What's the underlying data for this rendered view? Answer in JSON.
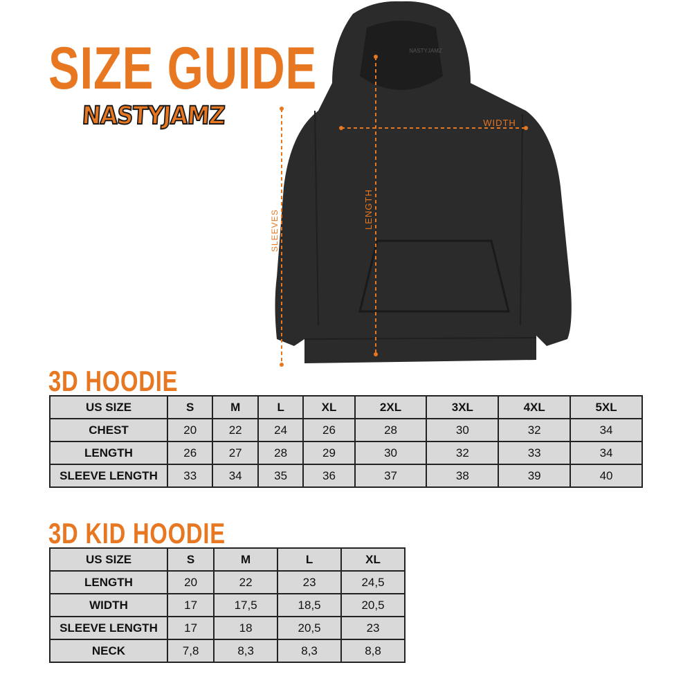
{
  "title": "SIZE GUIDE",
  "logo_text": "NASTYJAMZ",
  "colors": {
    "accent": "#e87722",
    "hoodie": "#2b2b2b",
    "table_bg": "#d9d9d9"
  },
  "diagram": {
    "width_label": "WIDTH",
    "length_label": "LENGTH",
    "sleeves_label": "SLEEVES",
    "brand_tag": "NASTYJAMZ"
  },
  "tables": [
    {
      "title": "3D HOODIE",
      "header": [
        "US SIZE",
        "S",
        "M",
        "L",
        "XL",
        "2XL",
        "3XL",
        "4XL",
        "5XL"
      ],
      "rows": [
        [
          "CHEST",
          "20",
          "22",
          "24",
          "26",
          "28",
          "30",
          "32",
          "34"
        ],
        [
          "LENGTH",
          "26",
          "27",
          "28",
          "29",
          "30",
          "32",
          "33",
          "34"
        ],
        [
          "SLEEVE LENGTH",
          "33",
          "34",
          "35",
          "36",
          "37",
          "38",
          "39",
          "40"
        ]
      ]
    },
    {
      "title": "3D KID HOODIE",
      "header": [
        "US SIZE",
        "S",
        "M",
        "L",
        "XL"
      ],
      "rows": [
        [
          "LENGTH",
          "20",
          "22",
          "23",
          "24,5"
        ],
        [
          "WIDTH",
          "17",
          "17,5",
          "18,5",
          "20,5"
        ],
        [
          "SLEEVE LENGTH",
          "17",
          "18",
          "20,5",
          "23"
        ],
        [
          "NECK",
          "7,8",
          "8,3",
          "8,3",
          "8,8"
        ]
      ]
    }
  ]
}
